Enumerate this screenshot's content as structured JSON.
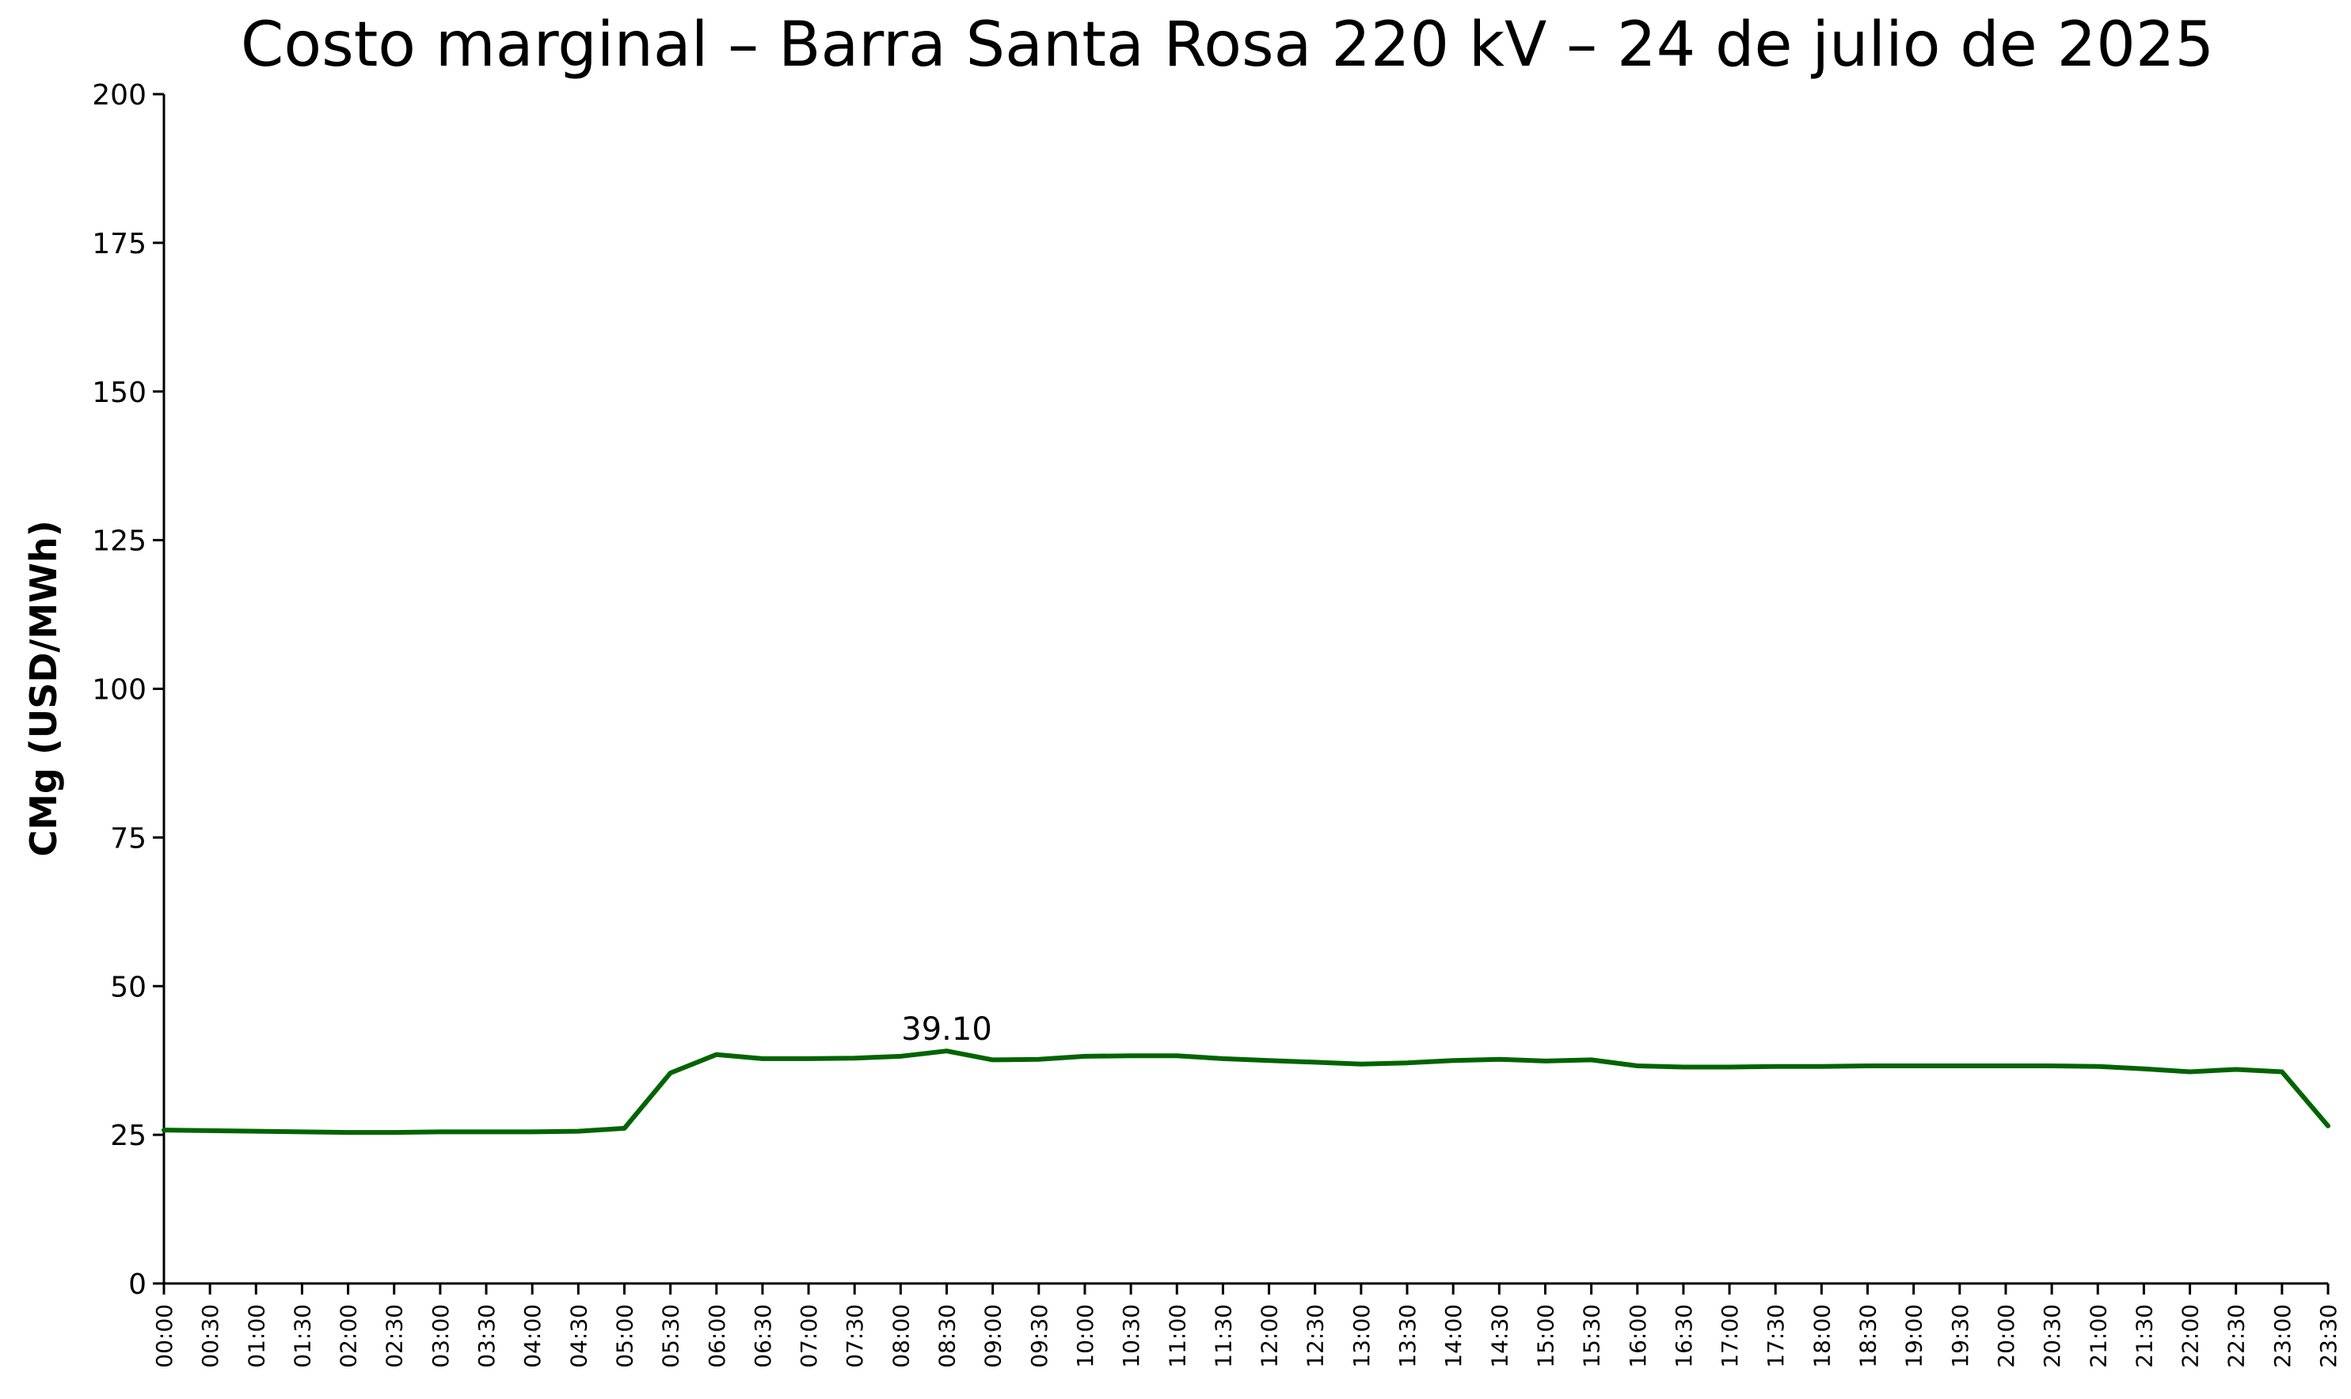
{
  "chart_data": {
    "type": "line",
    "title": "Costo marginal – Barra Santa Rosa 220 kV – 24 de julio de 2025",
    "xlabel": "",
    "ylabel": "CMg (USD/MWh)",
    "ylim": [
      0,
      200
    ],
    "yticks": [
      "0",
      "25",
      "50",
      "75",
      "100",
      "125",
      "150",
      "175",
      "200"
    ],
    "categories": [
      "00:00",
      "00:30",
      "01:00",
      "01:30",
      "02:00",
      "02:30",
      "03:00",
      "03:30",
      "04:00",
      "04:30",
      "05:00",
      "05:30",
      "06:00",
      "06:30",
      "07:00",
      "07:30",
      "08:00",
      "08:30",
      "09:00",
      "09:30",
      "10:00",
      "10:30",
      "11:00",
      "11:30",
      "12:00",
      "12:30",
      "13:00",
      "13:30",
      "14:00",
      "14:30",
      "15:00",
      "15:30",
      "16:00",
      "16:30",
      "17:00",
      "17:30",
      "18:00",
      "18:30",
      "19:00",
      "19:30",
      "20:00",
      "20:30",
      "21:00",
      "21:30",
      "22:00",
      "22:30",
      "23:00",
      "23:30"
    ],
    "series": [
      {
        "color": "#006400",
        "values": [
          25.8,
          25.7,
          25.6,
          25.5,
          25.4,
          25.4,
          25.5,
          25.5,
          25.5,
          25.6,
          26.1,
          35.4,
          38.5,
          37.8,
          37.8,
          37.9,
          38.2,
          39.1,
          37.6,
          37.7,
          38.2,
          38.3,
          38.3,
          37.8,
          37.5,
          37.2,
          36.9,
          37.1,
          37.5,
          37.7,
          37.4,
          37.6,
          36.6,
          36.4,
          36.4,
          36.5,
          36.5,
          36.6,
          36.6,
          36.6,
          36.6,
          36.6,
          36.5,
          36.1,
          35.6,
          36.0,
          35.6,
          26.5
        ]
      }
    ],
    "annotations": [
      {
        "category": "08:30",
        "value": 39.1,
        "text": "39.10"
      }
    ],
    "grid": false,
    "legend": "none"
  }
}
